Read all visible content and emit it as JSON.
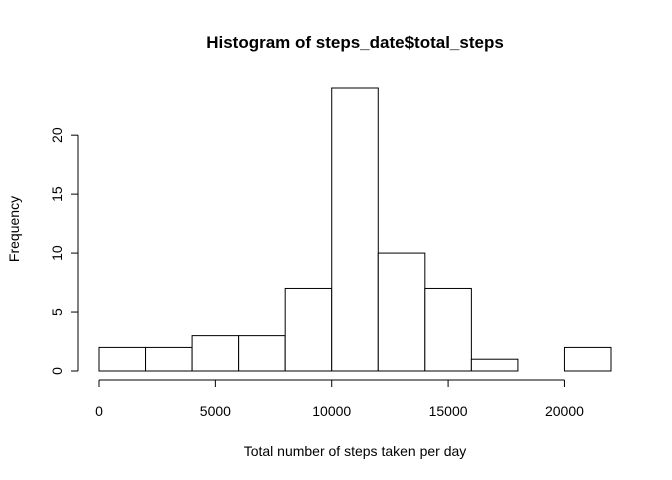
{
  "chart_data": {
    "type": "bar",
    "title": "Histogram of steps_date$total_steps",
    "xlabel": "Total number of steps taken per day",
    "ylabel": "Frequency",
    "bins": [
      {
        "from": 0,
        "to": 2000,
        "count": 2
      },
      {
        "from": 2000,
        "to": 4000,
        "count": 2
      },
      {
        "from": 4000,
        "to": 6000,
        "count": 3
      },
      {
        "from": 6000,
        "to": 8000,
        "count": 3
      },
      {
        "from": 8000,
        "to": 10000,
        "count": 7
      },
      {
        "from": 10000,
        "to": 12000,
        "count": 24
      },
      {
        "from": 12000,
        "to": 14000,
        "count": 10
      },
      {
        "from": 14000,
        "to": 16000,
        "count": 7
      },
      {
        "from": 16000,
        "to": 18000,
        "count": 1
      },
      {
        "from": 18000,
        "to": 20000,
        "count": 0
      },
      {
        "from": 20000,
        "to": 22000,
        "count": 2
      }
    ],
    "x_ticks": [
      0,
      5000,
      10000,
      15000,
      20000
    ],
    "y_ticks": [
      0,
      5,
      10,
      15,
      20
    ],
    "xlim": [
      0,
      22000
    ],
    "ylim": [
      0,
      24
    ],
    "grid": false,
    "bar_fill": "#ffffff",
    "bar_stroke": "#000000"
  }
}
